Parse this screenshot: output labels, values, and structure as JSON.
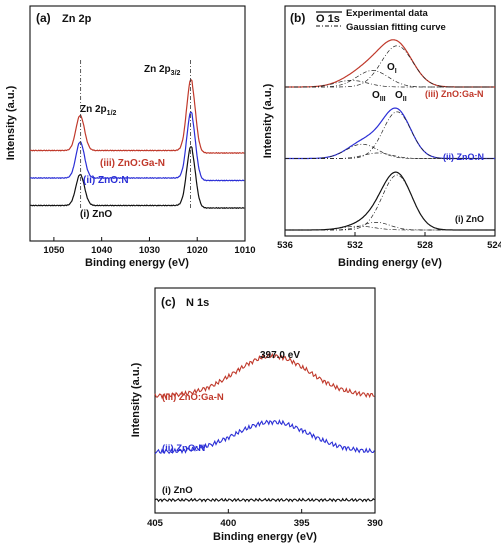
{
  "chart_data": [
    {
      "panel": "(a)",
      "title": "Zn 2p",
      "type": "line",
      "xlabel": "Binding energy (eV)",
      "ylabel": "Intensity (a.u.)",
      "xlim": [
        1055,
        1010
      ],
      "x_ticks": [
        1050,
        1040,
        1030,
        1020,
        1010
      ],
      "peak_labels": [
        {
          "text": "Zn 2p",
          "sub": "1/2",
          "x": 1044.4
        },
        {
          "text": "Zn 2p",
          "sub": "3/2",
          "x": 1021.4
        }
      ],
      "series": [
        {
          "name": "(i) ZnO",
          "color": "#111111",
          "baseline": 0.0,
          "peaks": [
            {
              "center": 1044.5,
              "height": 0.62,
              "width": 0.9
            },
            {
              "center": 1021.3,
              "height": 1.18,
              "width": 0.9
            }
          ]
        },
        {
          "name": "(ii) ZnO:N",
          "color": "#2b2fd6",
          "baseline": 0.55,
          "peaks": [
            {
              "center": 1044.5,
              "height": 0.72,
              "width": 0.9
            },
            {
              "center": 1021.3,
              "height": 1.32,
              "width": 0.9
            }
          ]
        },
        {
          "name": "(iii) ZnO:Ga-N",
          "color": "#c0392b",
          "baseline": 1.1,
          "peaks": [
            {
              "center": 1044.5,
              "height": 0.7,
              "width": 0.9
            },
            {
              "center": 1021.3,
              "height": 1.42,
              "width": 0.9
            }
          ]
        }
      ]
    },
    {
      "panel": "(b)",
      "title": "O 1s",
      "type": "line",
      "xlabel": "Binding energy (eV)",
      "ylabel": "Intensity (a.u.)",
      "xlim": [
        536,
        524
      ],
      "x_ticks": [
        536,
        532,
        528,
        524
      ],
      "legend": [
        "Experimental data",
        "Gaussian fitting curve"
      ],
      "component_labels": [
        {
          "text": "O",
          "sub": "I"
        },
        {
          "text": "O",
          "sub": "III"
        },
        {
          "text": "O",
          "sub": "II"
        }
      ],
      "series": [
        {
          "name": "(i) ZnO",
          "color": "#111111",
          "baseline": 0.0,
          "components": [
            {
              "center": 529.6,
              "height": 1.0,
              "width": 0.85
            },
            {
              "center": 530.8,
              "height": 0.14,
              "width": 0.8
            },
            {
              "center": 531.8,
              "height": 0.07,
              "width": 0.9
            }
          ]
        },
        {
          "name": "(ii) ZnO:N",
          "color": "#2b2fd6",
          "baseline": 1.3,
          "components": [
            {
              "center": 529.6,
              "height": 0.85,
              "width": 0.8
            },
            {
              "center": 531.6,
              "height": 0.26,
              "width": 0.9
            },
            {
              "center": 530.7,
              "height": 0.1,
              "width": 0.8
            }
          ]
        },
        {
          "name": "(iii) ZnO:Ga-N",
          "color": "#c0392b",
          "baseline": 2.6,
          "components": [
            {
              "center": 529.6,
              "height": 0.75,
              "width": 0.9
            },
            {
              "center": 531.0,
              "height": 0.3,
              "width": 0.9
            },
            {
              "center": 532.2,
              "height": 0.12,
              "width": 0.9
            }
          ]
        }
      ]
    },
    {
      "panel": "(c)",
      "title": "N 1s",
      "type": "line",
      "xlabel": "Binding energy (eV)",
      "ylabel": "Intensity (a.u.)",
      "xlim": [
        405,
        390
      ],
      "x_ticks": [
        405,
        400,
        395,
        390
      ],
      "annotation": "397.0 eV",
      "series": [
        {
          "name": "(i) ZnO",
          "color": "#111111",
          "baseline": 0.0,
          "peak": {
            "center": 397.0,
            "height": 0.0,
            "width": 2.5
          }
        },
        {
          "name": "(ii) ZnO:N",
          "color": "#2b2fd6",
          "baseline": 1.2,
          "peak": {
            "center": 397.0,
            "height": 0.75,
            "width": 2.5
          }
        },
        {
          "name": "(iii) ZnO:Ga-N",
          "color": "#c0392b",
          "baseline": 2.6,
          "peak": {
            "center": 397.0,
            "height": 1.0,
            "width": 2.5
          }
        }
      ]
    }
  ]
}
